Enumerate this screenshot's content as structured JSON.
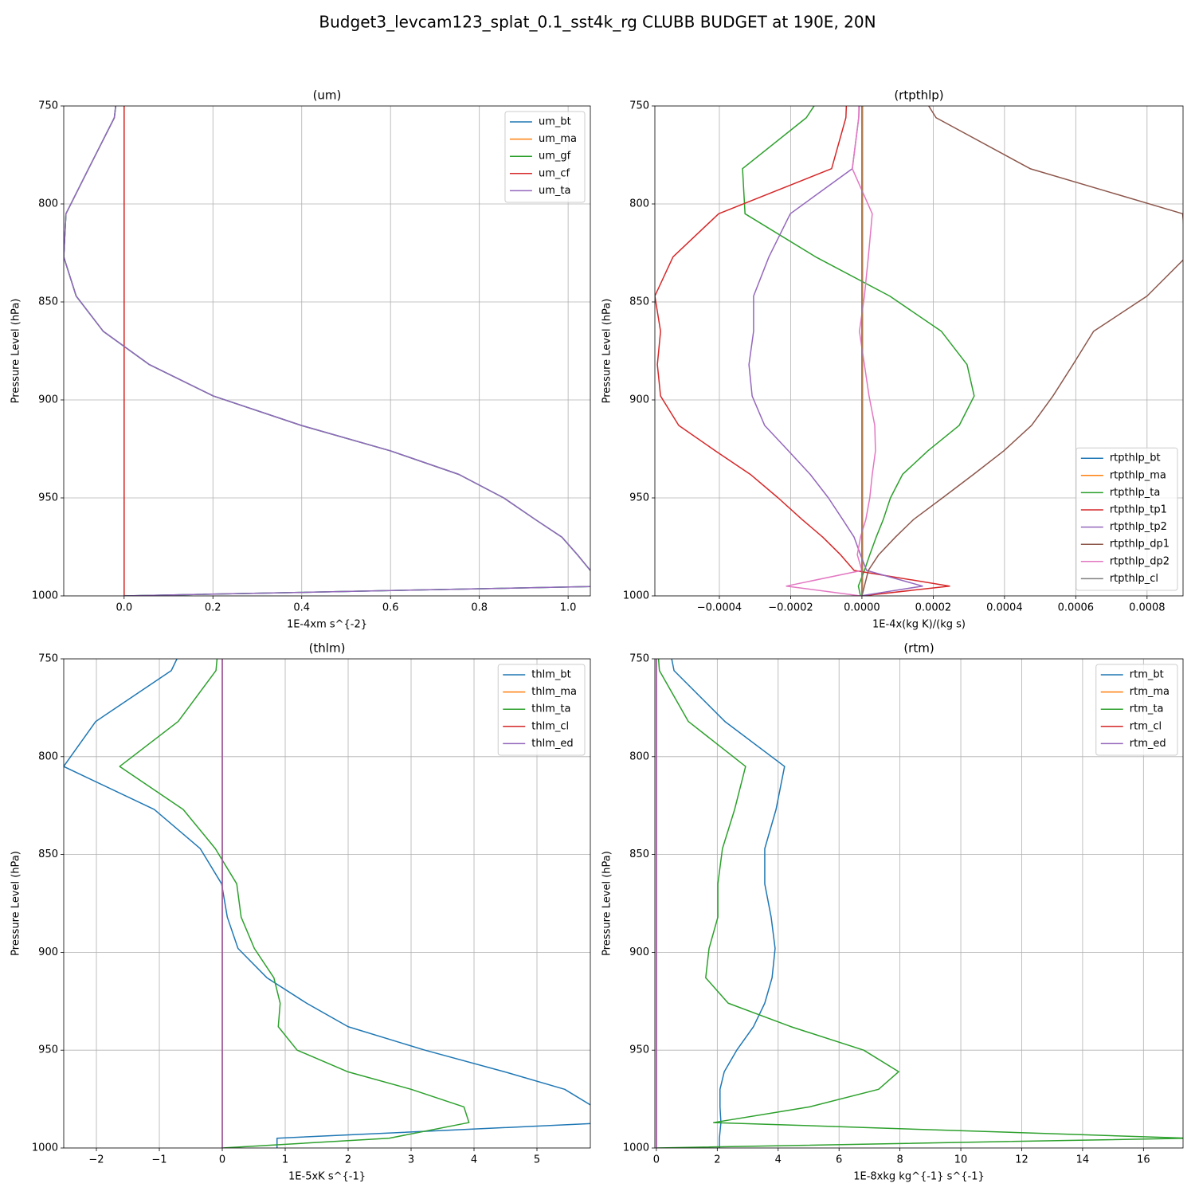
{
  "title": "Budget3_levcam123_splat_0.1_sst4k_rg CLUBB BUDGET at 190E, 20N",
  "chart_data": [
    {
      "type": "line",
      "title": "(um)",
      "xlabel": "1E-4xm s^{-2}",
      "ylabel": "Pressure Level (hPa)",
      "y": [
        742,
        756,
        782,
        805,
        827,
        847,
        865,
        882,
        898,
        913,
        926,
        938,
        950,
        961,
        970,
        979,
        987,
        995,
        1000
      ],
      "xlim": [
        -0.136,
        1.05
      ],
      "xticks": [
        {
          "value": 0,
          "label": "0.0"
        },
        0.2,
        0.4,
        0.6,
        0.8,
        {
          "value": 1,
          "label": "1.0"
        }
      ],
      "ylim": [
        1000,
        750
      ],
      "yticks": [
        750,
        800,
        850,
        900,
        950,
        1000
      ],
      "grid": true,
      "legend": "upper right",
      "series": [
        {
          "name": "um_bt",
          "color": "#1f77b4",
          "values": [
            -0.015,
            -0.022,
            -0.08,
            -0.131,
            -0.136,
            -0.108,
            -0.047,
            0.057,
            0.201,
            0.399,
            0.6,
            0.754,
            0.855,
            0.926,
            0.986,
            1.021,
            1.05,
            1.1,
            0
          ]
        },
        {
          "name": "um_ma",
          "color": "#ff7f0e",
          "values": [
            0,
            0,
            0,
            0,
            0,
            0,
            0,
            0,
            0,
            0,
            0,
            0,
            0,
            0,
            0,
            0,
            0,
            0,
            0
          ]
        },
        {
          "name": "um_gf",
          "color": "#2ca02c",
          "values": [
            -0.015,
            -0.022,
            -0.08,
            -0.131,
            -0.136,
            -0.108,
            -0.047,
            0.057,
            0.201,
            0.399,
            0.6,
            0.754,
            0.855,
            0.926,
            0.986,
            1.021,
            1.05,
            1.1,
            0
          ]
        },
        {
          "name": "um_cf",
          "color": "#d62728",
          "values": [
            0,
            0,
            0,
            0,
            0,
            0,
            0,
            0,
            0,
            0,
            0,
            0,
            0,
            0,
            0,
            0,
            0,
            0,
            0
          ]
        },
        {
          "name": "um_ta",
          "color": "#9467bd",
          "values": [
            -0.015,
            -0.022,
            -0.08,
            -0.131,
            -0.136,
            -0.108,
            -0.047,
            0.057,
            0.201,
            0.399,
            0.6,
            0.754,
            0.855,
            0.926,
            0.986,
            1.021,
            1.05,
            1.1,
            0
          ]
        }
      ]
    },
    {
      "type": "line",
      "title": "(rtpthlp)",
      "xlabel": "1E-4x(kg K)/(kg s)",
      "ylabel": "Pressure Level (hPa)",
      "y": [
        742,
        756,
        782,
        805,
        827,
        847,
        865,
        882,
        898,
        913,
        926,
        938,
        950,
        961,
        970,
        979,
        987,
        995,
        1000
      ],
      "xlim": [
        -0.000581,
        0.000901
      ],
      "xticks": [
        {
          "value": -0.0004,
          "label": "−0.0004"
        },
        {
          "value": -0.0002,
          "label": "−0.0002"
        },
        {
          "value": 0,
          "label": "0.0000"
        },
        {
          "value": 0.0002,
          "label": "0.0002"
        },
        {
          "value": 0.0004,
          "label": "0.0004"
        },
        {
          "value": 0.0006,
          "label": "0.0006"
        },
        {
          "value": 0.0008,
          "label": "0.0008"
        }
      ],
      "ylim": [
        1000,
        750
      ],
      "yticks": [
        750,
        800,
        850,
        900,
        950,
        1000
      ],
      "grid": true,
      "legend": "lower right",
      "series": [
        {
          "name": "rtpthlp_bt",
          "color": "#1f77b4",
          "values": [
            0,
            0,
            0,
            0,
            0,
            0,
            0,
            0,
            0,
            0,
            0,
            0,
            0,
            0,
            0,
            0,
            0,
            0,
            0
          ]
        },
        {
          "name": "rtpthlp_ma",
          "color": "#ff7f0e",
          "values": [
            2e-06,
            2e-06,
            2e-06,
            2e-06,
            2e-06,
            2e-06,
            2e-06,
            2e-06,
            2e-06,
            2e-06,
            2e-06,
            2e-06,
            2e-06,
            2e-06,
            2e-06,
            2e-06,
            2e-06,
            2e-06,
            0
          ]
        },
        {
          "name": "rtpthlp_ta",
          "color": "#2ca02c",
          "values": [
            -0.000105,
            -0.000156,
            -0.000335,
            -0.000328,
            -0.00013,
            7.8e-05,
            0.000223,
            0.000295,
            0.000315,
            0.000273,
            0.000185,
            0.000114,
            8e-05,
            6e-05,
            4e-05,
            2.2e-05,
            7e-06,
            -1e-05,
            -4e-06
          ]
        },
        {
          "name": "rtpthlp_tp1",
          "color": "#d62728",
          "values": [
            -4.2e-05,
            -4.5e-05,
            -8.5e-05,
            -0.000402,
            -0.00053,
            -0.000581,
            -0.000565,
            -0.000574,
            -0.000565,
            -0.000514,
            -0.000411,
            -0.000313,
            -0.000235,
            -0.000168,
            -0.00011,
            -6e-05,
            -2.2e-05,
            0.000246,
            0
          ]
        },
        {
          "name": "rtpthlp_tp2",
          "color": "#9467bd",
          "values": [
            -5e-06,
            -9e-06,
            -2.7e-05,
            -0.000201,
            -0.000261,
            -0.000304,
            -0.000304,
            -0.000317,
            -0.000308,
            -0.000273,
            -0.000206,
            -0.000145,
            -9.4e-05,
            -5.4e-05,
            -2.2e-05,
            -4e-06,
            1.3e-05,
            0.00017,
            -4e-06
          ]
        },
        {
          "name": "rtpthlp_dp1",
          "color": "#8c564b",
          "values": [
            0.00016,
            0.000208,
            0.000472,
            0.0009,
            0.00091,
            0.0008,
            0.00065,
            0.000592,
            0.000536,
            0.000476,
            0.000398,
            0.000313,
            0.000226,
            0.000145,
            9.4e-05,
            4.7e-05,
            1.8e-05,
            7e-06,
            0
          ]
        },
        {
          "name": "rtpthlp_dp2",
          "color": "#e377c2",
          "values": [
            -8e-06,
            -9e-06,
            -2.7e-05,
            2.9e-05,
            1.8e-05,
            7e-06,
            -7e-06,
            7e-06,
            2e-05,
            3.6e-05,
            3.8e-05,
            2.9e-05,
            2.2e-05,
            1.1e-05,
            -4e-06,
            -1.3e-05,
            0,
            -0.000212,
            -4e-06
          ]
        },
        {
          "name": "rtpthlp_cl",
          "color": "#7f7f7f",
          "values": [
            0,
            0,
            0,
            0,
            0,
            0,
            0,
            0,
            0,
            0,
            0,
            0,
            0,
            0,
            0,
            0,
            0,
            0,
            0
          ]
        }
      ]
    },
    {
      "type": "line",
      "title": "(thlm)",
      "xlabel": "1E-5xK s^{-1}",
      "ylabel": "Pressure Level (hPa)",
      "y": [
        742,
        756,
        782,
        805,
        827,
        847,
        865,
        882,
        898,
        913,
        926,
        938,
        950,
        961,
        970,
        979,
        987,
        995,
        1000
      ],
      "xlim": [
        -2.519,
        5.848
      ],
      "xticks": [
        {
          "value": -2,
          "label": "−2"
        },
        {
          "value": -1,
          "label": "−1"
        },
        0,
        1,
        2,
        3,
        4,
        5
      ],
      "ylim": [
        1000,
        750
      ],
      "yticks": [
        750,
        800,
        850,
        900,
        950,
        1000
      ],
      "grid": true,
      "legend": "upper right",
      "series": [
        {
          "name": "thlm_bt",
          "color": "#1f77b4",
          "values": [
            -0.6,
            -0.81,
            -2.01,
            -2.52,
            -1.08,
            -0.35,
            -0.01,
            0.08,
            0.25,
            0.71,
            1.34,
            2.0,
            3.22,
            4.48,
            5.44,
            5.9,
            6.2,
            0.87,
            0.87
          ]
        },
        {
          "name": "thlm_ma",
          "color": "#ff7f0e",
          "values": [
            0,
            0,
            0,
            0,
            0,
            0,
            0,
            0,
            0,
            0,
            0,
            0,
            0,
            0,
            0,
            0,
            0,
            0,
            0
          ]
        },
        {
          "name": "thlm_ta",
          "color": "#2ca02c",
          "values": [
            -0.06,
            -0.1,
            -0.7,
            -1.63,
            -0.62,
            -0.11,
            0.23,
            0.3,
            0.51,
            0.82,
            0.92,
            0.89,
            1.19,
            1.99,
            3.0,
            3.84,
            3.92,
            2.65,
            0
          ]
        },
        {
          "name": "thlm_cl",
          "color": "#d62728",
          "values": [
            0,
            0,
            0,
            0,
            0,
            0,
            0,
            0,
            0,
            0,
            0,
            0,
            0,
            0,
            0,
            0,
            0,
            0,
            0
          ]
        },
        {
          "name": "thlm_ed",
          "color": "#9467bd",
          "values": [
            0,
            0,
            0,
            0,
            0,
            0,
            0,
            0,
            0,
            0,
            0,
            0,
            0,
            0,
            0,
            0,
            0,
            0,
            0
          ]
        }
      ]
    },
    {
      "type": "line",
      "title": "(rtm)",
      "xlabel": "1E-8xkg kg^{-1} s^{-1}",
      "ylabel": "Pressure Level (hPa)",
      "y": [
        742,
        756,
        782,
        805,
        827,
        847,
        865,
        882,
        898,
        913,
        926,
        938,
        950,
        961,
        970,
        979,
        987,
        995,
        1000
      ],
      "xlim": [
        -0.05,
        17.3
      ],
      "xticks": [
        0,
        2,
        4,
        6,
        8,
        10,
        12,
        14,
        16
      ],
      "ylim": [
        1000,
        750
      ],
      "yticks": [
        750,
        800,
        850,
        900,
        950,
        1000
      ],
      "grid": true,
      "legend": "upper right",
      "series": [
        {
          "name": "rtm_bt",
          "color": "#1f77b4",
          "values": [
            0.4,
            0.58,
            2.25,
            4.21,
            3.93,
            3.56,
            3.56,
            3.77,
            3.9,
            3.8,
            3.56,
            3.19,
            2.64,
            2.23,
            2.09,
            2.09,
            2.12,
            2.07,
            2.07
          ]
        },
        {
          "name": "rtm_ma",
          "color": "#ff7f0e",
          "values": [
            0,
            0,
            0,
            0,
            0,
            0,
            0,
            0,
            0,
            0,
            0,
            0,
            0,
            0,
            0,
            0,
            0,
            0,
            0
          ]
        },
        {
          "name": "rtm_ta",
          "color": "#2ca02c",
          "values": [
            0.03,
            0.1,
            1.05,
            2.93,
            2.57,
            2.17,
            2.02,
            2.02,
            1.73,
            1.62,
            2.36,
            4.42,
            6.81,
            7.96,
            7.3,
            5.03,
            1.88,
            17.5,
            0
          ]
        },
        {
          "name": "rtm_cl",
          "color": "#d62728",
          "values": [
            0,
            0,
            0,
            0,
            0,
            0,
            0,
            0,
            0,
            0,
            0,
            0,
            0,
            0,
            0,
            0,
            0,
            0,
            0
          ]
        },
        {
          "name": "rtm_ed",
          "color": "#9467bd",
          "values": [
            0,
            0,
            0,
            0,
            0,
            0,
            0,
            0,
            0,
            0,
            0,
            0,
            0,
            0,
            0,
            0,
            0,
            0,
            0
          ]
        }
      ]
    }
  ]
}
